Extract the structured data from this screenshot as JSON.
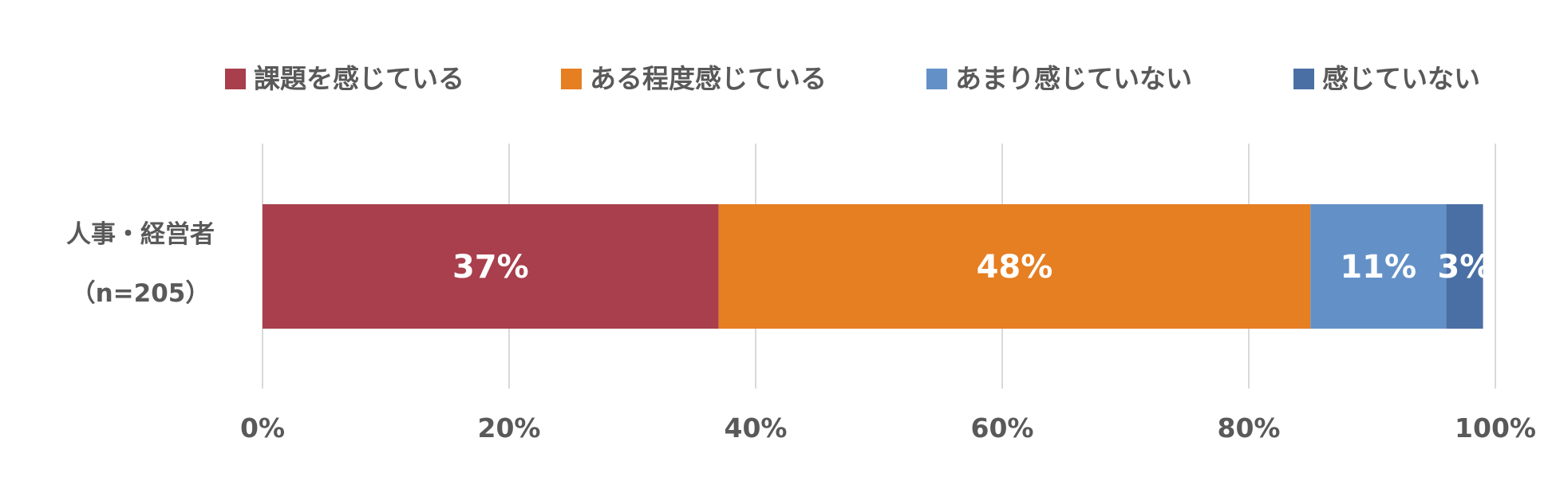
{
  "chart_data": {
    "type": "bar",
    "orientation": "horizontal",
    "stacked": true,
    "categories": [
      "人事・経営者\n（n=205）"
    ],
    "category_lines": [
      "人事・経営者",
      "（n=205）"
    ],
    "series": [
      {
        "name": "課題を感じている",
        "values": [
          37
        ],
        "label": "37%",
        "color": "#A93F4C"
      },
      {
        "name": "ある程度感じている",
        "values": [
          48
        ],
        "label": "48%",
        "color": "#E67E22"
      },
      {
        "name": "あまり感じていない",
        "values": [
          11
        ],
        "label": "11%",
        "color": "#6391C7"
      },
      {
        "name": "感じていない",
        "values": [
          3
        ],
        "label": "3%",
        "color": "#4A6FA5"
      }
    ],
    "xlim": [
      0,
      100
    ],
    "x_ticks": [
      "0%",
      "20%",
      "40%",
      "60%",
      "80%",
      "100%"
    ],
    "x_tick_values": [
      0,
      20,
      40,
      60,
      80,
      100
    ],
    "grid": true,
    "legend": "top",
    "title": "",
    "xlabel": "",
    "ylabel": ""
  }
}
